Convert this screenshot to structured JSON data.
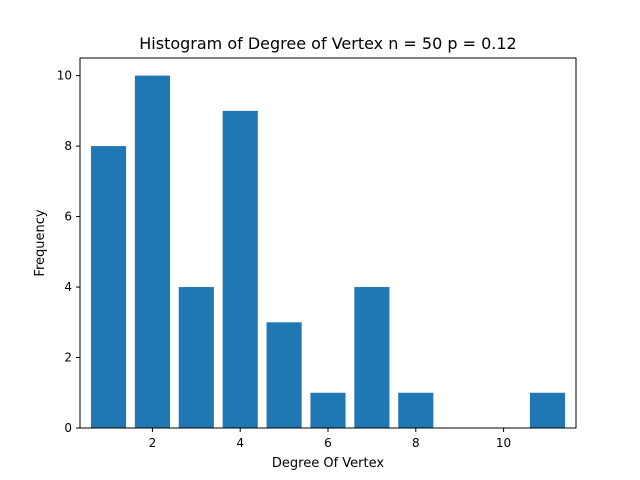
{
  "chart_data": {
    "type": "bar",
    "title": "Histogram of Degree of Vertex n = 50 p = 0.12",
    "xlabel": "Degree Of Vertex",
    "ylabel": "Frequency",
    "x": [
      1,
      2,
      3,
      4,
      5,
      6,
      7,
      8,
      11
    ],
    "values": [
      8,
      10,
      4,
      9,
      3,
      1,
      4,
      1,
      1
    ],
    "bar_width": 0.8,
    "xlim": [
      0.35,
      11.65
    ],
    "ylim": [
      0,
      10.5
    ],
    "xticks": [
      2,
      4,
      6,
      8,
      10
    ],
    "yticks": [
      0,
      2,
      4,
      6,
      8,
      10
    ],
    "color": "#1f77b4",
    "grid": false
  }
}
